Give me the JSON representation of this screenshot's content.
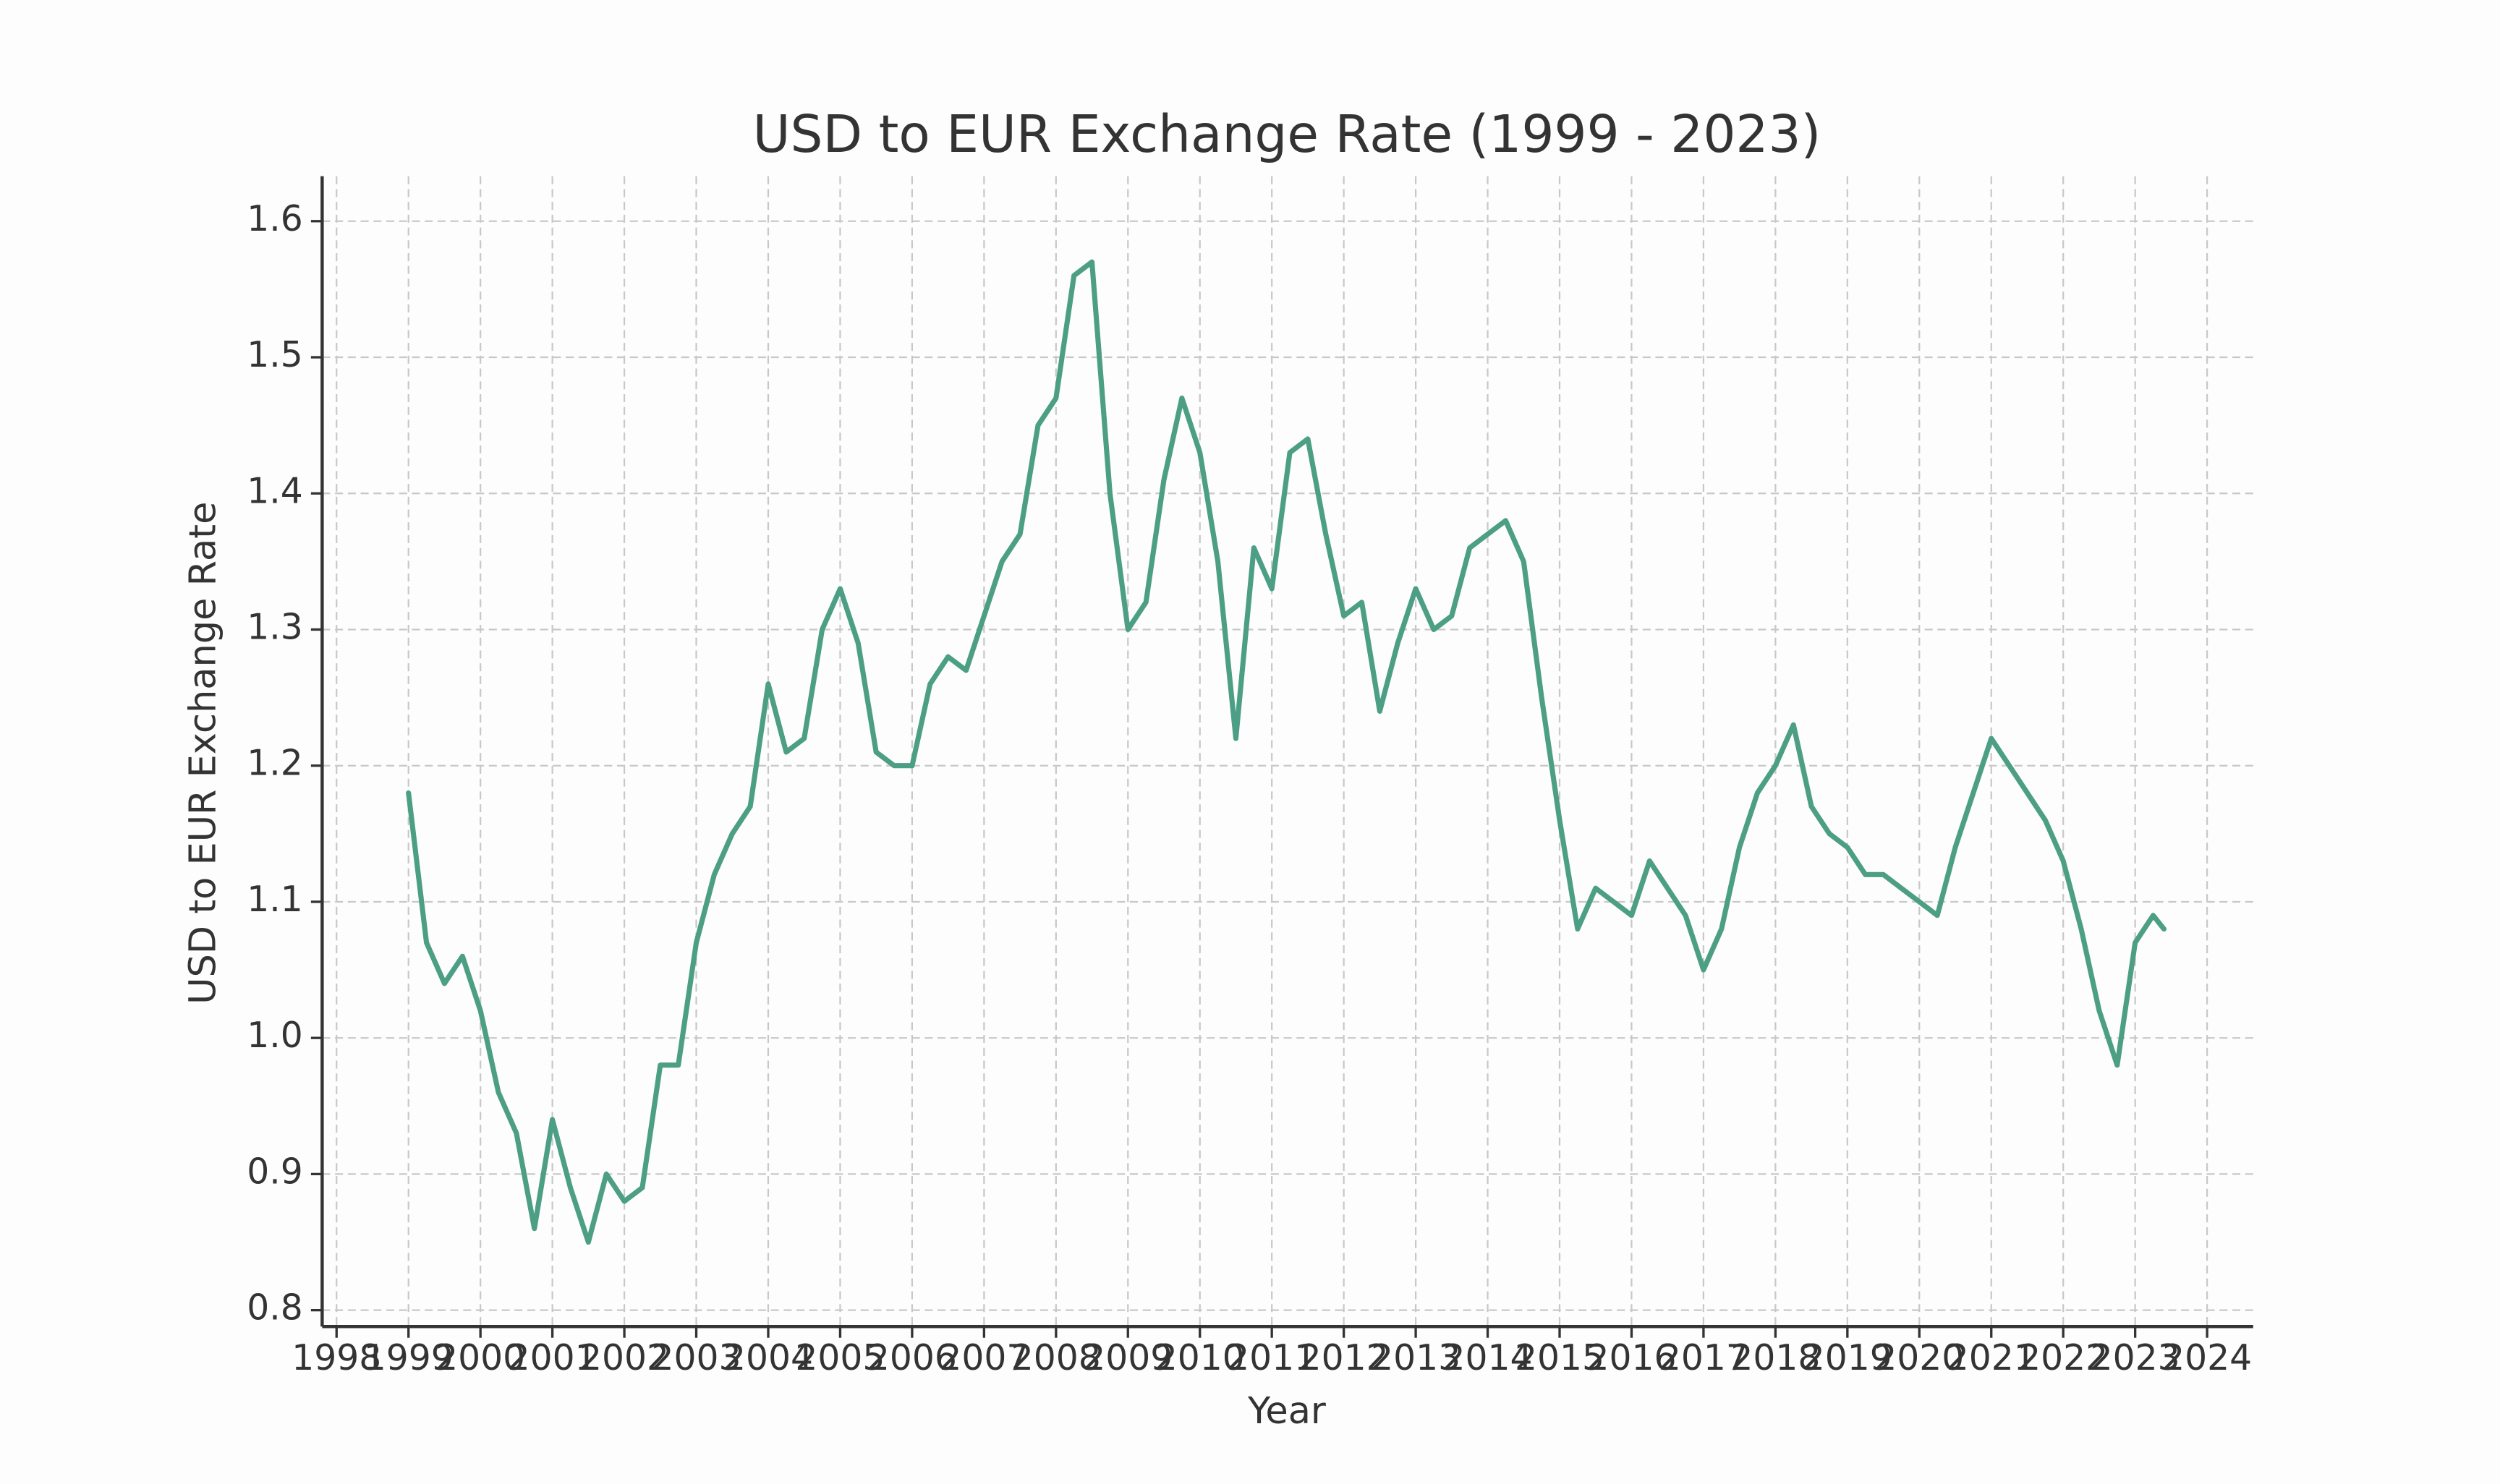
{
  "chart_data": {
    "type": "line",
    "title": "USD to EUR Exchange Rate (1999 - 2023)",
    "x_label": "Year",
    "y_label": "USD to EUR Exchange Rate",
    "color": "#4c9f84",
    "grid": true,
    "xlim": [
      1997.8,
      2024.64
    ],
    "ylim": [
      0.788,
      1.633
    ],
    "xticks": [
      1998,
      1999,
      2000,
      2001,
      2002,
      2003,
      2004,
      2005,
      2006,
      2007,
      2008,
      2009,
      2010,
      2011,
      2012,
      2013,
      2014,
      2015,
      2016,
      2017,
      2018,
      2019,
      2020,
      2021,
      2022,
      2023,
      2024
    ],
    "yticks": [
      {
        "value": 0.8,
        "label": "0.8"
      },
      {
        "value": 0.9,
        "label": "0.9"
      },
      {
        "value": 1.0,
        "label": "1.0"
      },
      {
        "value": 1.1,
        "label": "1.1"
      },
      {
        "value": 1.2,
        "label": "1.2"
      },
      {
        "value": 1.3,
        "label": "1.3"
      },
      {
        "value": 1.4,
        "label": "1.4"
      },
      {
        "value": 1.5,
        "label": "1.5"
      },
      {
        "value": 1.6,
        "label": "1.6"
      }
    ],
    "x": [
      1999.0,
      1999.25,
      1999.5,
      1999.75,
      2000.0,
      2000.25,
      2000.5,
      2000.75,
      2001.0,
      2001.25,
      2001.5,
      2001.75,
      2002.0,
      2002.25,
      2002.5,
      2002.75,
      2003.0,
      2003.25,
      2003.5,
      2003.75,
      2004.0,
      2004.25,
      2004.5,
      2004.75,
      2005.0,
      2005.25,
      2005.5,
      2005.75,
      2006.0,
      2006.25,
      2006.5,
      2006.75,
      2007.0,
      2007.25,
      2007.5,
      2007.75,
      2008.0,
      2008.25,
      2008.5,
      2008.75,
      2009.0,
      2009.25,
      2009.5,
      2009.75,
      2010.0,
      2010.25,
      2010.5,
      2010.75,
      2011.0,
      2011.25,
      2011.5,
      2011.75,
      2012.0,
      2012.25,
      2012.5,
      2012.75,
      2013.0,
      2013.25,
      2013.5,
      2013.75,
      2014.0,
      2014.25,
      2014.5,
      2014.75,
      2015.0,
      2015.25,
      2015.5,
      2015.75,
      2016.0,
      2016.25,
      2016.5,
      2016.75,
      2017.0,
      2017.25,
      2017.5,
      2017.75,
      2018.0,
      2018.25,
      2018.5,
      2018.75,
      2019.0,
      2019.25,
      2019.5,
      2019.75,
      2020.0,
      2020.25,
      2020.5,
      2020.75,
      2021.0,
      2021.25,
      2021.5,
      2021.75,
      2022.0,
      2022.25,
      2022.5,
      2022.75,
      2023.0,
      2023.25,
      2023.4
    ],
    "values": [
      1.18,
      1.07,
      1.04,
      1.06,
      1.02,
      0.96,
      0.93,
      0.86,
      0.94,
      0.89,
      0.85,
      0.9,
      0.88,
      0.89,
      0.98,
      0.98,
      1.07,
      1.12,
      1.15,
      1.17,
      1.26,
      1.21,
      1.22,
      1.3,
      1.33,
      1.29,
      1.21,
      1.2,
      1.2,
      1.26,
      1.28,
      1.27,
      1.31,
      1.35,
      1.37,
      1.45,
      1.47,
      1.56,
      1.57,
      1.4,
      1.3,
      1.32,
      1.41,
      1.47,
      1.43,
      1.35,
      1.22,
      1.36,
      1.33,
      1.43,
      1.44,
      1.37,
      1.31,
      1.32,
      1.24,
      1.29,
      1.33,
      1.3,
      1.31,
      1.36,
      1.37,
      1.38,
      1.35,
      1.25,
      1.16,
      1.08,
      1.11,
      1.1,
      1.09,
      1.13,
      1.11,
      1.09,
      1.05,
      1.08,
      1.14,
      1.18,
      1.2,
      1.23,
      1.17,
      1.15,
      1.14,
      1.12,
      1.12,
      1.11,
      1.1,
      1.09,
      1.14,
      1.18,
      1.22,
      1.2,
      1.18,
      1.16,
      1.13,
      1.08,
      1.02,
      0.98,
      1.07,
      1.09,
      1.08
    ]
  }
}
